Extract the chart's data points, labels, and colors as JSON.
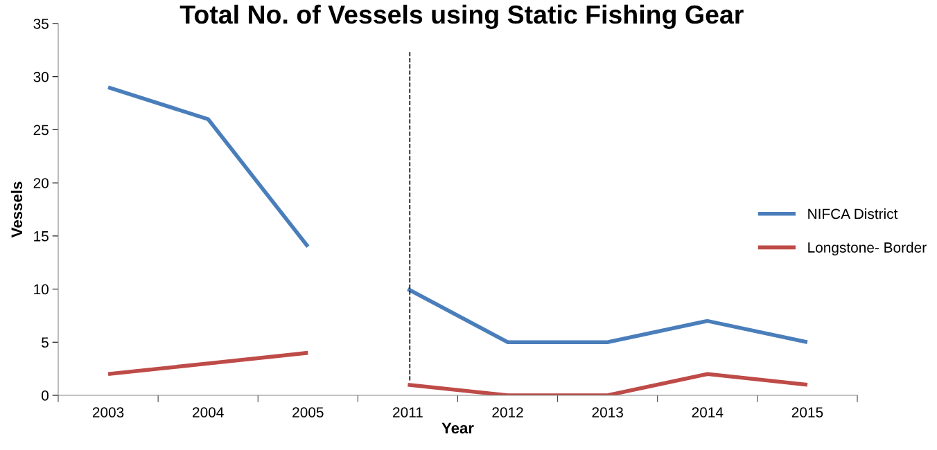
{
  "chart_data": {
    "type": "line",
    "title": "Total No. of Vessels using Static Fishing Gear",
    "xlabel": "Year",
    "ylabel": "Vessels",
    "categories": [
      "2003",
      "2004",
      "2005",
      "2011",
      "2012",
      "2013",
      "2014",
      "2015"
    ],
    "series": [
      {
        "name": "NIFCA District",
        "color": "#4a7ebb",
        "values": [
          29,
          26,
          14,
          null,
          null,
          null,
          null,
          null
        ]
      },
      {
        "color": "#4a7ebb",
        "values": [
          null,
          null,
          null,
          10,
          5,
          5,
          7,
          5
        ]
      },
      {
        "name": "Longstone- Border",
        "color": "#be4b48",
        "values": [
          2,
          3,
          4,
          null,
          null,
          null,
          null,
          null
        ]
      },
      {
        "color": "#be4b48",
        "values": [
          null,
          null,
          null,
          1,
          0,
          0,
          2,
          1
        ]
      }
    ],
    "ylim": [
      0,
      35
    ],
    "yticks": [
      0,
      5,
      10,
      15,
      20,
      25,
      30,
      35
    ],
    "grid": false,
    "legend": "right",
    "marker": "none",
    "line_style": "solid",
    "ref_lines": [
      {
        "axis": "x",
        "value": "2011",
        "color": "#000000",
        "line_style": "dashed"
      }
    ]
  }
}
